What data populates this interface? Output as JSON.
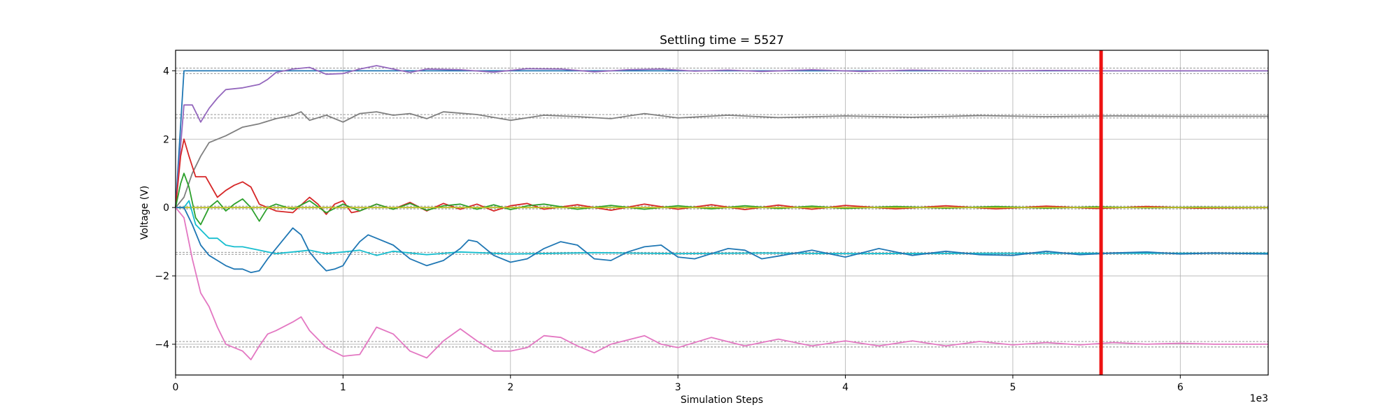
{
  "chart_data": {
    "type": "line",
    "title": "Settling time = 5527",
    "xlabel": "Simulation Steps",
    "ylabel": "Voltage (V)",
    "x_offset_text": "1e3",
    "xlim": [
      0,
      6.525
    ],
    "ylim": [
      -4.9,
      4.6
    ],
    "x_ticks": [
      0,
      1,
      2,
      3,
      4,
      5,
      6
    ],
    "x_tick_labels": [
      "0",
      "1",
      "2",
      "3",
      "4",
      "5",
      "6"
    ],
    "y_ticks": [
      -4,
      -2,
      0,
      2,
      4
    ],
    "y_tick_labels": [
      "−4",
      "−2",
      "0",
      "2",
      "4"
    ],
    "grid": true,
    "settling_marker": {
      "x": 5.527,
      "color": "#ee1111"
    },
    "tolerance_bands": [
      {
        "center": 4,
        "half_width": 0.08
      },
      {
        "center": 2.67,
        "half_width": 0.05
      },
      {
        "center": 0,
        "half_width": 0.04
      },
      {
        "center": -1.34,
        "half_width": 0.03
      },
      {
        "center": -4,
        "half_width": 0.08
      }
    ],
    "series": [
      {
        "color": "#1f77b4",
        "x": [
          0,
          0.05,
          6.525
        ],
        "y": [
          0,
          4,
          4
        ]
      },
      {
        "color": "#9467bd",
        "x": [
          0,
          0.05,
          0.1,
          0.15,
          0.2,
          0.25,
          0.3,
          0.4,
          0.5,
          0.55,
          0.6,
          0.7,
          0.8,
          0.9,
          1.0,
          1.1,
          1.2,
          1.3,
          1.4,
          1.5,
          1.7,
          1.9,
          2.1,
          2.3,
          2.5,
          2.7,
          2.9,
          3.1,
          3.3,
          3.5,
          3.8,
          4.1,
          4.4,
          4.8,
          5.2,
          5.6,
          6.0,
          6.525
        ],
        "y": [
          0,
          3.0,
          3.0,
          2.5,
          2.9,
          3.2,
          3.45,
          3.5,
          3.6,
          3.75,
          3.95,
          4.05,
          4.1,
          3.9,
          3.92,
          4.05,
          4.15,
          4.05,
          3.95,
          4.05,
          4.03,
          3.96,
          4.06,
          4.05,
          3.97,
          4.03,
          4.05,
          3.99,
          4.02,
          3.98,
          4.03,
          3.98,
          4.02,
          3.99,
          4.01,
          4.0,
          4.0,
          4.0
        ]
      },
      {
        "color": "#7f7f7f",
        "x": [
          0,
          0.05,
          0.1,
          0.15,
          0.2,
          0.3,
          0.4,
          0.5,
          0.6,
          0.7,
          0.75,
          0.8,
          0.9,
          1.0,
          1.1,
          1.2,
          1.3,
          1.4,
          1.5,
          1.6,
          1.8,
          2.0,
          2.2,
          2.4,
          2.6,
          2.8,
          3.0,
          3.3,
          3.6,
          4.0,
          4.4,
          4.8,
          5.2,
          5.6,
          6.0,
          6.525
        ],
        "y": [
          0,
          0.3,
          1.0,
          1.5,
          1.9,
          2.1,
          2.35,
          2.45,
          2.6,
          2.7,
          2.8,
          2.55,
          2.7,
          2.5,
          2.75,
          2.8,
          2.7,
          2.75,
          2.6,
          2.8,
          2.72,
          2.55,
          2.7,
          2.66,
          2.6,
          2.75,
          2.62,
          2.7,
          2.63,
          2.68,
          2.64,
          2.69,
          2.66,
          2.68,
          2.67,
          2.67
        ]
      },
      {
        "color": "#d62728",
        "x": [
          0,
          0.03,
          0.05,
          0.08,
          0.12,
          0.18,
          0.25,
          0.3,
          0.35,
          0.4,
          0.45,
          0.5,
          0.55,
          0.6,
          0.7,
          0.8,
          0.85,
          0.9,
          0.95,
          1.0,
          1.05,
          1.1,
          1.2,
          1.3,
          1.4,
          1.5,
          1.6,
          1.7,
          1.8,
          1.9,
          2.0,
          2.1,
          2.2,
          2.4,
          2.6,
          2.8,
          3.0,
          3.2,
          3.4,
          3.6,
          3.8,
          4.0,
          4.3,
          4.6,
          4.9,
          5.2,
          5.5,
          5.8,
          6.1,
          6.525
        ],
        "y": [
          0,
          1.5,
          2.0,
          1.5,
          0.9,
          0.9,
          0.3,
          0.5,
          0.65,
          0.75,
          0.6,
          0.1,
          0.0,
          -0.1,
          -0.15,
          0.3,
          0.1,
          -0.2,
          0.1,
          0.2,
          -0.15,
          -0.1,
          0.1,
          -0.05,
          0.15,
          -0.1,
          0.12,
          -0.05,
          0.1,
          -0.1,
          0.05,
          0.12,
          -0.05,
          0.08,
          -0.08,
          0.1,
          -0.05,
          0.08,
          -0.06,
          0.07,
          -0.05,
          0.06,
          -0.04,
          0.05,
          -0.04,
          0.04,
          -0.03,
          0.03,
          -0.02,
          0.0
        ]
      },
      {
        "color": "#2ca02c",
        "x": [
          0,
          0.03,
          0.05,
          0.08,
          0.12,
          0.15,
          0.2,
          0.25,
          0.3,
          0.35,
          0.4,
          0.45,
          0.5,
          0.55,
          0.6,
          0.7,
          0.8,
          0.9,
          1.0,
          1.1,
          1.2,
          1.3,
          1.4,
          1.5,
          1.6,
          1.7,
          1.8,
          1.9,
          2.0,
          2.1,
          2.2,
          2.4,
          2.6,
          2.8,
          3.0,
          3.2,
          3.4,
          3.6,
          3.8,
          4.0,
          4.3,
          4.6,
          4.9,
          5.2,
          5.5,
          5.8,
          6.1,
          6.525
        ],
        "y": [
          0,
          0.7,
          1.0,
          0.6,
          -0.3,
          -0.5,
          0.0,
          0.2,
          -0.1,
          0.1,
          0.25,
          0.0,
          -0.4,
          0.0,
          0.1,
          -0.05,
          0.2,
          -0.15,
          0.1,
          -0.1,
          0.1,
          -0.05,
          0.12,
          -0.08,
          0.05,
          0.1,
          -0.05,
          0.08,
          -0.06,
          0.05,
          0.1,
          -0.05,
          0.06,
          -0.05,
          0.05,
          -0.04,
          0.05,
          -0.03,
          0.04,
          -0.03,
          0.03,
          -0.02,
          0.03,
          -0.02,
          0.02,
          -0.01,
          0.01,
          0.0
        ]
      },
      {
        "color": "#bcbd22",
        "x": [
          0,
          6.525
        ],
        "y": [
          0,
          0
        ]
      },
      {
        "color": "#17becf",
        "x": [
          0,
          0.05,
          0.08,
          0.12,
          0.2,
          0.25,
          0.3,
          0.35,
          0.4,
          0.5,
          0.6,
          0.7,
          0.8,
          0.9,
          1.0,
          1.1,
          1.2,
          1.3,
          1.5,
          1.7,
          2.0,
          2.5,
          3.0,
          3.5,
          4.0,
          5.0,
          6.0,
          6.525
        ],
        "y": [
          0,
          0.0,
          0.2,
          -0.5,
          -0.9,
          -0.9,
          -1.1,
          -1.15,
          -1.15,
          -1.25,
          -1.35,
          -1.3,
          -1.25,
          -1.35,
          -1.3,
          -1.25,
          -1.4,
          -1.28,
          -1.38,
          -1.3,
          -1.36,
          -1.32,
          -1.35,
          -1.33,
          -1.35,
          -1.34,
          -1.34,
          -1.34
        ]
      },
      {
        "color": "#1f77b4",
        "x": [
          0,
          0.05,
          0.1,
          0.15,
          0.2,
          0.25,
          0.3,
          0.35,
          0.4,
          0.45,
          0.5,
          0.55,
          0.6,
          0.65,
          0.7,
          0.75,
          0.8,
          0.85,
          0.9,
          0.95,
          1.0,
          1.05,
          1.1,
          1.15,
          1.2,
          1.3,
          1.4,
          1.5,
          1.6,
          1.7,
          1.75,
          1.8,
          1.9,
          2.0,
          2.1,
          2.2,
          2.3,
          2.4,
          2.5,
          2.6,
          2.7,
          2.8,
          2.9,
          3.0,
          3.1,
          3.2,
          3.3,
          3.4,
          3.5,
          3.6,
          3.8,
          4.0,
          4.2,
          4.4,
          4.6,
          4.8,
          5.0,
          5.2,
          5.4,
          5.6,
          5.8,
          6.0,
          6.2,
          6.525
        ],
        "y": [
          0,
          0.0,
          -0.5,
          -1.1,
          -1.4,
          -1.55,
          -1.7,
          -1.8,
          -1.8,
          -1.9,
          -1.85,
          -1.5,
          -1.2,
          -0.9,
          -0.6,
          -0.8,
          -1.3,
          -1.6,
          -1.85,
          -1.8,
          -1.7,
          -1.3,
          -1.0,
          -0.8,
          -0.9,
          -1.1,
          -1.5,
          -1.7,
          -1.55,
          -1.2,
          -0.95,
          -1.0,
          -1.4,
          -1.6,
          -1.5,
          -1.2,
          -1.0,
          -1.1,
          -1.5,
          -1.55,
          -1.3,
          -1.15,
          -1.1,
          -1.45,
          -1.5,
          -1.35,
          -1.2,
          -1.25,
          -1.5,
          -1.42,
          -1.25,
          -1.45,
          -1.2,
          -1.4,
          -1.28,
          -1.38,
          -1.4,
          -1.28,
          -1.38,
          -1.33,
          -1.3,
          -1.36,
          -1.33,
          -1.36
        ]
      },
      {
        "color": "#e377c2",
        "x": [
          0,
          0.05,
          0.1,
          0.15,
          0.2,
          0.25,
          0.3,
          0.35,
          0.4,
          0.45,
          0.5,
          0.55,
          0.6,
          0.7,
          0.75,
          0.8,
          0.9,
          1.0,
          1.1,
          1.15,
          1.2,
          1.3,
          1.4,
          1.5,
          1.6,
          1.7,
          1.8,
          1.9,
          2.0,
          2.1,
          2.2,
          2.3,
          2.4,
          2.5,
          2.6,
          2.8,
          2.9,
          3.0,
          3.2,
          3.4,
          3.6,
          3.8,
          4.0,
          4.2,
          4.4,
          4.6,
          4.8,
          5.0,
          5.2,
          5.4,
          5.6,
          5.8,
          6.0,
          6.2,
          6.525
        ],
        "y": [
          0,
          -0.3,
          -1.5,
          -2.5,
          -2.9,
          -3.5,
          -4.0,
          -4.1,
          -4.2,
          -4.45,
          -4.05,
          -3.7,
          -3.6,
          -3.35,
          -3.2,
          -3.6,
          -4.1,
          -4.35,
          -4.3,
          -3.9,
          -3.5,
          -3.7,
          -4.2,
          -4.4,
          -3.9,
          -3.55,
          -3.9,
          -4.2,
          -4.2,
          -4.1,
          -3.75,
          -3.8,
          -4.05,
          -4.25,
          -4.0,
          -3.75,
          -4.0,
          -4.1,
          -3.8,
          -4.05,
          -3.85,
          -4.05,
          -3.9,
          -4.05,
          -3.9,
          -4.05,
          -3.92,
          -4.02,
          -3.95,
          -4.02,
          -3.95,
          -4.0,
          -3.97,
          -4.0,
          -4.0
        ]
      }
    ]
  }
}
